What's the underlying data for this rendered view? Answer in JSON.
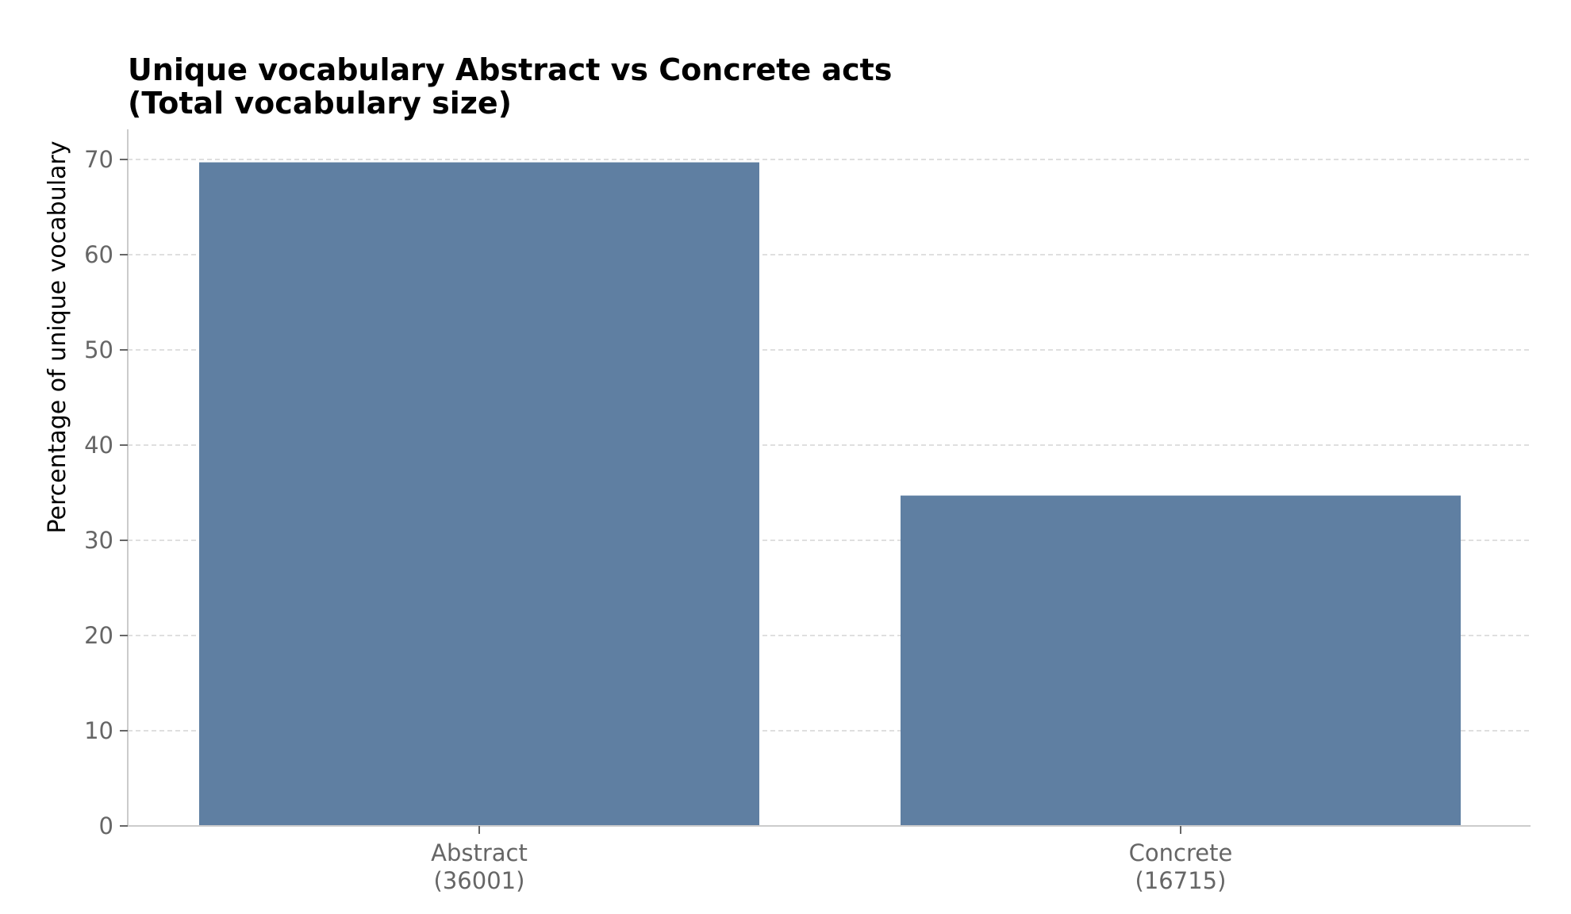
{
  "chart_data": {
    "type": "bar",
    "title": [
      "Unique vocabulary Abstract vs Concrete acts",
      "(Total vocabulary size)"
    ],
    "ylabel": "Percentage of unique vocabulary",
    "xlabel": "",
    "categories": [
      {
        "name": "Abstract",
        "total": "(36001)"
      },
      {
        "name": "Concrete",
        "total": "(16715)"
      }
    ],
    "values": [
      69.7,
      34.7
    ],
    "ylim": [
      0,
      73
    ],
    "yticks": [
      0,
      10,
      20,
      30,
      40,
      50,
      60,
      70
    ],
    "grid": true,
    "bar_color": "#5f7fa2"
  }
}
